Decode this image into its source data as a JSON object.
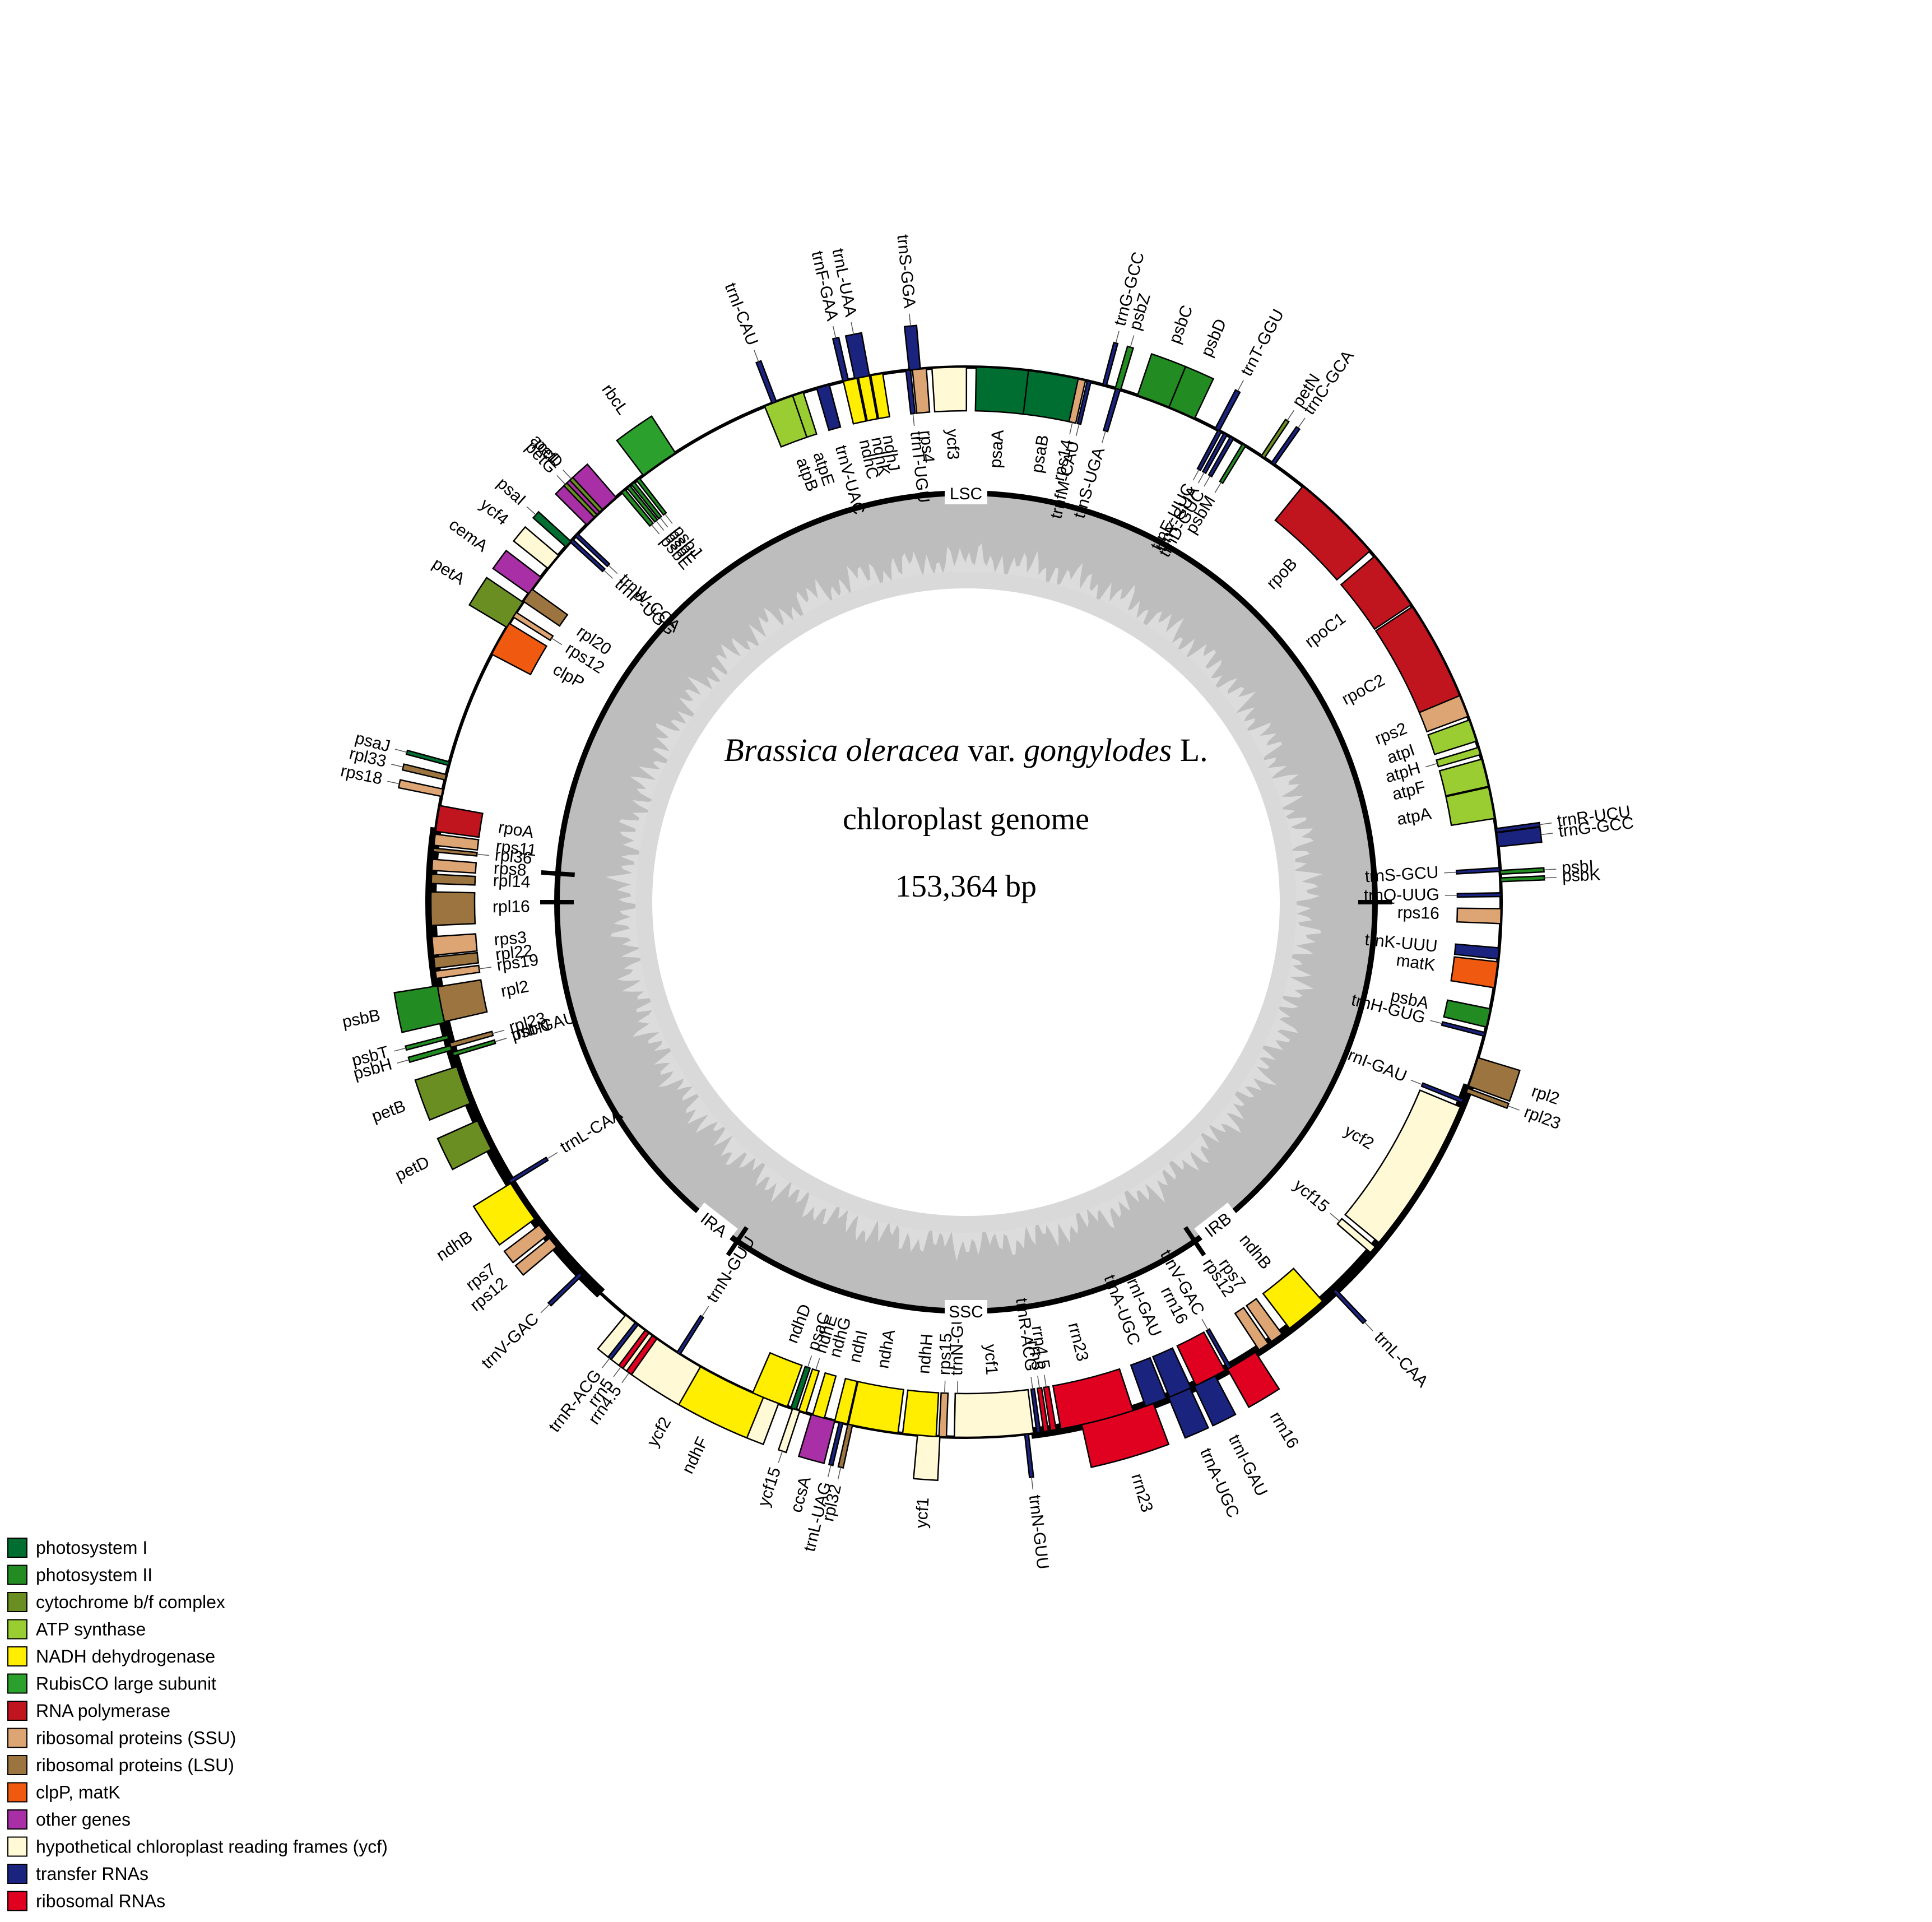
{
  "title": {
    "species_italic_1": "Brassica oleracea",
    "species_plain_1": " var. ",
    "species_italic_2": "gongylodes",
    "species_plain_2": " L.",
    "subtitle": "chloroplast genome",
    "length": "153,364 bp"
  },
  "regions": [
    "LSC",
    "IRA",
    "SSC",
    "IRB"
  ],
  "categories": {
    "PSI": {
      "label": "photosystem I",
      "color": "#006e30"
    },
    "PSII": {
      "label": "photosystem II",
      "color": "#228b22"
    },
    "CYT": {
      "label": "cytochrome b/f complex",
      "color": "#6b8e23"
    },
    "ATP": {
      "label": "ATP synthase",
      "color": "#9acd32"
    },
    "NDH": {
      "label": "NADH dehydrogenase",
      "color": "#ffee00"
    },
    "RBC": {
      "label": "RubisCO large subunit",
      "color": "#2ca02c"
    },
    "RPO": {
      "label": "RNA polymerase",
      "color": "#c0141e"
    },
    "SSU": {
      "label": "ribosomal proteins (SSU)",
      "color": "#dda574"
    },
    "LSU": {
      "label": "ribosomal proteins (LSU)",
      "color": "#9c7440"
    },
    "CLP": {
      "label": "clpP, matK",
      "color": "#ef5a10"
    },
    "OTH": {
      "label": "other genes",
      "color": "#a82fa6"
    },
    "YCF": {
      "label": "hypothetical chloroplast reading frames (ycf)",
      "color": "#fff9d6"
    },
    "TRN": {
      "label": "transfer RNAs",
      "color": "#1a237e"
    },
    "RRN": {
      "label": "ribosomal RNAs",
      "color": "#e00020"
    }
  },
  "legend_order": [
    "PSI",
    "PSII",
    "CYT",
    "ATP",
    "NDH",
    "RBC",
    "RPO",
    "SSU",
    "LSU",
    "CLP",
    "OTH",
    "YCF",
    "TRN",
    "RRN"
  ],
  "genes": [
    {
      "n": "trnS-GGA",
      "c": "TRN",
      "a": -5.5,
      "d": 1.2,
      "o": 1,
      "lr": 90,
      "lead": true
    },
    {
      "n": "trnL-UAA",
      "c": "TRN",
      "a": -11.2,
      "d": 1.6,
      "o": 1,
      "lr": 90,
      "lead": true
    },
    {
      "n": "trnF-GAA",
      "c": "TRN",
      "a": -13,
      "d": 0.6,
      "o": 1,
      "lr": 90,
      "lead": true
    },
    {
      "n": "trnI-CAU",
      "c": "TRN",
      "a": -21,
      "d": 0.5,
      "o": 1,
      "lr": 90,
      "lead": true
    },
    {
      "n": "rbcL",
      "c": "RBC",
      "a": -35,
      "d": 4.2,
      "o": 1,
      "lr": 90
    },
    {
      "n": "accD",
      "c": "OTH",
      "a": -43,
      "d": 4.3,
      "o": 1,
      "lr": 90
    },
    {
      "n": "psaI",
      "c": "PSI",
      "a": -48,
      "d": 0.8,
      "o": 1,
      "lr": 90,
      "lead": true
    },
    {
      "n": "ycf4",
      "c": "YCF",
      "a": -50.5,
      "d": 1.8,
      "o": 1,
      "lr": 90
    },
    {
      "n": "cemA",
      "c": "OTH",
      "a": -53.7,
      "d": 2.2,
      "o": 1,
      "lr": 90
    },
    {
      "n": "petA",
      "c": "CYT",
      "a": -57.5,
      "d": 3.2,
      "o": 1,
      "lr": 90
    },
    {
      "n": "psaJ",
      "c": "PSI",
      "a": -75,
      "d": 0.4,
      "o": 1,
      "lr": 90,
      "lead": true
    },
    {
      "n": "rpl33",
      "c": "LSU",
      "a": -76.5,
      "d": 0.6,
      "o": 1,
      "lr": 90,
      "lead": true
    },
    {
      "n": "rps18",
      "c": "SSU",
      "a": -78.2,
      "d": 0.8,
      "o": 1,
      "lr": 90,
      "lead": true
    },
    {
      "n": "psbB",
      "c": "PSII",
      "a": -101,
      "d": 4,
      "o": 1,
      "lr": 90
    },
    {
      "n": "psbT",
      "c": "PSII",
      "a": -104.6,
      "d": 0.4,
      "o": 1,
      "lr": 90,
      "lead": true
    },
    {
      "n": "psbH",
      "c": "PSII",
      "a": -105.8,
      "d": 0.5,
      "o": 1,
      "lr": 90,
      "lead": true
    },
    {
      "n": "petB",
      "c": "CYT",
      "a": -110,
      "d": 4.2,
      "o": 1,
      "lr": 90
    },
    {
      "n": "petD",
      "c": "CYT",
      "a": -115.8,
      "d": 3.4,
      "o": 1,
      "lr": 90
    },
    {
      "n": "ycf2",
      "c": "YCF",
      "a": -150,
      "d": 19,
      "o": 1,
      "lr": 90
    },
    {
      "n": "ycf15",
      "c": "YCF",
      "a": -161.5,
      "d": 0.8,
      "o": 1,
      "lr": 90,
      "lead": true
    },
    {
      "n": "rrn16",
      "c": "RRN",
      "a": -211,
      "d": 3.5,
      "o": 1,
      "lr": 90
    },
    {
      "n": "trnI-GAU",
      "c": "TRN",
      "a": -206.5,
      "d": 2.5,
      "o": 1,
      "lr": 90
    },
    {
      "n": "trnA-UGC",
      "c": "TRN",
      "a": -203.5,
      "d": 2.5,
      "o": 1,
      "lr": 90
    },
    {
      "n": "rrn23",
      "c": "RRN",
      "a": -196.5,
      "d": 8,
      "o": 1,
      "lr": 90
    },
    {
      "n": "ycf1",
      "c": "YCF",
      "a": -176,
      "d": 2.4,
      "o": 1,
      "lr": 90
    },
    {
      "n": "rpl32",
      "c": "LSU",
      "a": -167.5,
      "d": 0.5,
      "o": 1,
      "lr": 90,
      "lead": true
    },
    {
      "n": "ccsA",
      "c": "OTH",
      "a": -164.5,
      "d": 2.6,
      "o": 1,
      "lr": 90
    },
    {
      "n": "trnN-GUU",
      "c": "TRN",
      "a": -179,
      "d": 0.5,
      "o": 0,
      "lr": 270,
      "lead": true
    },
    {
      "n": "trnV-UAC",
      "c": "TRN",
      "a": -15.5,
      "d": 1.4,
      "o": 0,
      "lr": 90
    },
    {
      "n": "atpE",
      "c": "ATP",
      "a": -18.3,
      "d": 1.2,
      "o": 0,
      "lr": 90
    },
    {
      "n": "atpB",
      "c": "ATP",
      "a": -20.5,
      "d": 3.2,
      "o": 0,
      "lr": 90
    },
    {
      "n": "ndhC",
      "c": "NDH",
      "a": -12.5,
      "d": 1.5,
      "o": 0,
      "lr": 90
    },
    {
      "n": "ndhK",
      "c": "NDH",
      "a": -11,
      "d": 1.2,
      "o": 0,
      "lr": 90
    },
    {
      "n": "ndhJ",
      "c": "NDH",
      "a": -9.6,
      "d": 1.3,
      "o": 0,
      "lr": 90
    },
    {
      "n": "trnT-UGU",
      "c": "TRN",
      "a": -6.2,
      "d": 0.5,
      "o": 0,
      "lr": 90
    },
    {
      "n": "rps4",
      "c": "SSU",
      "a": -5,
      "d": 1.5,
      "o": 0,
      "lr": 90
    },
    {
      "n": "ycf3",
      "c": "YCF",
      "a": -1.8,
      "d": 3.7,
      "o": 0,
      "lr": 90
    },
    {
      "n": "psaA",
      "c": "PSI",
      "a": 4,
      "d": 5.8,
      "o": 0,
      "lr": 90
    },
    {
      "n": "psaB",
      "c": "PSI",
      "a": 9.5,
      "d": 5.6,
      "o": 0,
      "lr": 90
    },
    {
      "n": "rps14",
      "c": "SSU",
      "a": 12.5,
      "d": 0.8,
      "o": 0,
      "lr": 90
    },
    {
      "n": "trnfM-CAU",
      "c": "TRN",
      "a": 13.3,
      "d": 0.4,
      "o": 0,
      "lr": 90
    },
    {
      "n": "trnG-GCC",
      "c": "TRN",
      "a": 15,
      "d": 0.4,
      "o": 1,
      "lr": 90,
      "lead": true
    },
    {
      "n": "psbZ",
      "c": "PSII",
      "a": 16.5,
      "d": 0.6,
      "o": 1,
      "lr": 90,
      "lead": true
    },
    {
      "n": "psbC",
      "c": "PSII",
      "a": 20.5,
      "d": 3.6,
      "o": 1,
      "lr": 90
    },
    {
      "n": "psbD",
      "c": "PSII",
      "a": 23.8,
      "d": 3,
      "o": 1,
      "lr": 90
    },
    {
      "n": "trnT-GGU",
      "c": "TRN",
      "a": 28,
      "d": 0.5,
      "o": 1,
      "lr": 90,
      "lead": true
    },
    {
      "n": "trnS-UGA",
      "c": "TRN",
      "a": 16.5,
      "d": 0.5,
      "o": 0,
      "lr": 90
    },
    {
      "n": "trnE-UUC",
      "c": "TRN",
      "a": 28.3,
      "d": 0.4,
      "o": 0,
      "lr": 90
    },
    {
      "n": "trnY-GUA",
      "c": "TRN",
      "a": 29,
      "d": 0.4,
      "o": 0,
      "lr": 90
    },
    {
      "n": "trnD-GUC",
      "c": "TRN",
      "a": 29.8,
      "d": 0.4,
      "o": 0,
      "lr": 90
    },
    {
      "n": "psbM",
      "c": "PSII",
      "a": 31.3,
      "d": 0.4,
      "o": 0,
      "lr": 90
    },
    {
      "n": "petN",
      "c": "CYT",
      "a": 33.7,
      "d": 0.4,
      "o": 1,
      "lr": 90,
      "lead": true
    },
    {
      "n": "trnC-GCA",
      "c": "TRN",
      "a": 35,
      "d": 0.4,
      "o": 1,
      "lr": 90,
      "lead": true
    },
    {
      "n": "rpoB",
      "c": "RPO",
      "a": 44,
      "d": 10,
      "o": 0,
      "lr": 90
    },
    {
      "n": "rpoC1",
      "c": "RPO",
      "a": 53,
      "d": 6.5,
      "o": 0,
      "lr": 90
    },
    {
      "n": "rpoC2",
      "c": "RPO",
      "a": 62,
      "d": 11,
      "o": 0,
      "lr": 90
    },
    {
      "n": "rps2",
      "c": "SSU",
      "a": 68.5,
      "d": 2.4,
      "o": 0,
      "lr": 90
    },
    {
      "n": "atpI",
      "c": "ATP",
      "a": 71.3,
      "d": 2.4,
      "o": 0,
      "lr": 90
    },
    {
      "n": "atpH",
      "c": "ATP",
      "a": 73.6,
      "d": 0.8,
      "o": 0,
      "lr": 90
    },
    {
      "n": "atpF",
      "c": "ATP",
      "a": 76,
      "d": 3,
      "o": 0,
      "lr": 90
    },
    {
      "n": "atpA",
      "c": "ATP",
      "a": 79.3,
      "d": 3.4,
      "o": 0,
      "lr": 90
    },
    {
      "n": "trnR-UCU",
      "c": "TRN",
      "a": 82.3,
      "d": 0.4,
      "o": 1,
      "lr": 90,
      "lead": true
    },
    {
      "n": "trnG-GCC",
      "c": "TRN",
      "a": 83.3,
      "d": 1.5,
      "o": 1,
      "lr": 90,
      "lead": true
    },
    {
      "n": "trnS-GCU",
      "c": "TRN",
      "a": 86.5,
      "d": 0.4,
      "o": 0,
      "lr": 90
    },
    {
      "n": "psbI",
      "c": "PSII",
      "a": 86.8,
      "d": 0.4,
      "o": 1,
      "lr": 90,
      "lead": true
    },
    {
      "n": "psbK",
      "c": "PSII",
      "a": 87.6,
      "d": 0.4,
      "o": 1,
      "lr": 90,
      "lead": true
    },
    {
      "n": "trnQ-UUG",
      "c": "TRN",
      "a": 89.2,
      "d": 0.4,
      "o": 0,
      "lr": 90
    },
    {
      "n": "rps16",
      "c": "SSU",
      "a": 91.5,
      "d": 1.6,
      "o": 0,
      "lr": 90
    },
    {
      "n": "trnK-UUU",
      "c": "TRN",
      "a": 95.5,
      "d": 1.2,
      "o": 0,
      "lr": 90
    },
    {
      "n": "matK",
      "c": "CLP",
      "a": 97.8,
      "d": 2.8,
      "o": 0,
      "lr": 90
    },
    {
      "n": "psbA",
      "c": "PSII",
      "a": 102.5,
      "d": 2,
      "o": 0,
      "lr": 90
    },
    {
      "n": "trnH-GUG",
      "c": "TRN",
      "a": 104.3,
      "d": 0.4,
      "o": 0,
      "lr": 90
    },
    {
      "n": "rpl2",
      "c": "LSU",
      "a": 108.5,
      "d": 3.2,
      "o": 1,
      "lr": 90
    },
    {
      "n": "rpl23",
      "c": "LSU",
      "a": 110.6,
      "d": 0.5,
      "o": 1,
      "lr": 90,
      "lead": true
    },
    {
      "n": "trnI-GAU",
      "c": "TRN",
      "a": 111.8,
      "d": 0.4,
      "o": 0,
      "lr": 90
    },
    {
      "n": "ycf2",
      "c": "YCF",
      "a": 121,
      "d": 17,
      "o": 0,
      "lr": 90
    },
    {
      "n": "ycf15",
      "c": "YCF",
      "a": 130.5,
      "d": 0.8,
      "o": 0,
      "lr": 90
    },
    {
      "n": "trnL-CAA",
      "c": "TRN",
      "a": 136.5,
      "d": 0.4,
      "o": 1,
      "lr": 90,
      "lead": true
    },
    {
      "n": "ndhB",
      "c": "NDH",
      "a": 140.5,
      "d": 4.6,
      "o": 0,
      "lr": 90
    },
    {
      "n": "rps7",
      "c": "SSU",
      "a": 144.5,
      "d": 1.4,
      "o": 0,
      "lr": 90
    },
    {
      "n": "rps12",
      "c": "SSU",
      "a": 146.2,
      "d": 1.2,
      "o": 0,
      "lr": 90
    },
    {
      "n": "trnV-GAC",
      "c": "TRN",
      "a": 150.5,
      "d": 0.4,
      "o": 0,
      "lr": 90
    },
    {
      "n": "rrn16",
      "c": "RRN",
      "a": 152.8,
      "d": 3.5,
      "o": 0,
      "lr": 90
    },
    {
      "n": "trnI-GAU",
      "c": "TRN",
      "a": 156.4,
      "d": 2.5,
      "o": 0,
      "lr": 90
    },
    {
      "n": "trnA-UGC",
      "c": "TRN",
      "a": 159.2,
      "d": 2.4,
      "o": 0,
      "lr": 90
    },
    {
      "n": "rrn23",
      "c": "RRN",
      "a": 165.8,
      "d": 8,
      "o": 0,
      "lr": 90
    },
    {
      "n": "rrn4.5",
      "c": "RRN",
      "a": 170.6,
      "d": 0.6,
      "o": 0,
      "lr": 90
    },
    {
      "n": "rrn5",
      "c": "RRN",
      "a": 171.4,
      "d": 0.5,
      "o": 0,
      "lr": 90
    },
    {
      "n": "trnR-ACG",
      "c": "TRN",
      "a": 172.2,
      "d": 0.4,
      "o": 0,
      "lr": 90
    },
    {
      "n": "trnN-GUU",
      "c": "TRN",
      "a": 173.5,
      "d": 0.4,
      "o": 1,
      "lr": 90,
      "lead": true
    },
    {
      "n": "ycf1",
      "c": "YCF",
      "a": 177,
      "d": 8.5,
      "o": 0,
      "lr": 90
    },
    {
      "n": "rps15",
      "c": "SSU",
      "a": 182.5,
      "d": 0.8,
      "o": 0,
      "lr": 90
    },
    {
      "n": "ndhH",
      "c": "NDH",
      "a": 185,
      "d": 3.6,
      "o": 0,
      "lr": 90
    },
    {
      "n": "ndhA",
      "c": "NDH",
      "a": 190,
      "d": 5.4,
      "o": 0,
      "lr": 90
    },
    {
      "n": "ndhI",
      "c": "NDH",
      "a": 193.5,
      "d": 1.4,
      "o": 0,
      "lr": 90
    },
    {
      "n": "ndhG",
      "c": "NDH",
      "a": 196,
      "d": 1.3,
      "o": 0,
      "lr": 90
    },
    {
      "n": "ndhE",
      "c": "NDH",
      "a": 197.8,
      "d": 0.8,
      "o": 0,
      "lr": 90
    },
    {
      "n": "psaC",
      "c": "PSI",
      "a": 198.8,
      "d": 0.6,
      "o": 0,
      "lr": 90
    },
    {
      "n": "ndhD",
      "c": "NDH",
      "a": 201.5,
      "d": 4,
      "o": 0,
      "lr": 90
    },
    {
      "n": "trnL-UAG",
      "c": "TRN",
      "a": 193.5,
      "d": 0.4,
      "o": 1,
      "lr": 90
    },
    {
      "n": "ndhF",
      "c": "NDH",
      "a": 206,
      "d": 7.5,
      "o": 1,
      "lr": 90
    },
    {
      "n": "trnN-GUU",
      "c": "TRN",
      "a": 212.5,
      "d": 0.4,
      "o": 0,
      "lr": 90
    },
    {
      "n": "rrn4.5",
      "c": "RRN",
      "a": 215.6,
      "d": 0.6,
      "o": 1,
      "lr": 90
    },
    {
      "n": "rrn5",
      "c": "RRN",
      "a": 216.6,
      "d": 0.5,
      "o": 1,
      "lr": 90
    },
    {
      "n": "trnR-ACG",
      "c": "TRN",
      "a": 218,
      "d": 0.4,
      "o": 1,
      "lr": 90
    },
    {
      "n": "trnV-GAC",
      "c": "TRN",
      "a": 226,
      "d": 0.4,
      "o": 1,
      "lr": 90
    },
    {
      "n": "trnL-CAA",
      "c": "TRN",
      "a": 238.5,
      "d": 0.4,
      "o": 0,
      "lr": 90
    },
    {
      "n": "ndhB",
      "c": "NDH",
      "a": 236,
      "d": 4.6,
      "o": 1,
      "lr": 90
    },
    {
      "n": "rps7",
      "c": "SSU",
      "a": 232.2,
      "d": 1.4,
      "o": 1,
      "lr": 90
    },
    {
      "n": "rps12",
      "c": "SSU",
      "a": 230.5,
      "d": 1.2,
      "o": 1,
      "lr": 90
    },
    {
      "n": "rpl23",
      "c": "LSU",
      "a": 254.5,
      "d": 0.5,
      "o": 0,
      "lr": 90
    },
    {
      "n": "trnI-GAU",
      "c": "TRN",
      "a": 253.5,
      "d": 0.4,
      "o": 0,
      "lr": 90
    },
    {
      "n": "rpl2",
      "c": "LSU",
      "a": 259,
      "d": 3.8,
      "o": 0,
      "lr": 90
    },
    {
      "n": "rps19",
      "c": "SSU",
      "a": 262.2,
      "d": 0.8,
      "o": 0,
      "lr": 90
    },
    {
      "n": "rpl22",
      "c": "LSU",
      "a": 263.5,
      "d": 1.2,
      "o": 0,
      "lr": 90
    },
    {
      "n": "rps3",
      "c": "SSU",
      "a": 265.3,
      "d": 2,
      "o": 0,
      "lr": 90
    },
    {
      "n": "rpl16",
      "c": "LSU",
      "a": 269.3,
      "d": 3.6,
      "o": 0,
      "lr": 90
    },
    {
      "n": "rpl14",
      "c": "LSU",
      "a": 272.5,
      "d": 1,
      "o": 0,
      "lr": 90
    },
    {
      "n": "rps8",
      "c": "SSU",
      "a": 274,
      "d": 1.2,
      "o": 0,
      "lr": 90
    },
    {
      "n": "rpl36",
      "c": "LSU",
      "a": 275.6,
      "d": 0.4,
      "o": 0,
      "lr": 90
    },
    {
      "n": "rps11",
      "c": "SSU",
      "a": 276.7,
      "d": 1.2,
      "o": 0,
      "lr": 90
    },
    {
      "n": "rpoA",
      "c": "RPO",
      "a": 279,
      "d": 2.8,
      "o": 0,
      "lr": 90
    },
    {
      "n": "psbN",
      "c": "PSII",
      "a": 253.5,
      "d": 0.4,
      "o": 0,
      "lr": 90
    },
    {
      "n": "clpP",
      "c": "CLP",
      "a": 299.5,
      "d": 3.8,
      "o": 0,
      "lr": 90
    },
    {
      "n": "rps12",
      "c": "SSU",
      "a": 302.5,
      "d": 0.6,
      "o": 0,
      "lr": 90
    },
    {
      "n": "rpl20",
      "c": "LSU",
      "a": 305,
      "d": 1.6,
      "o": 0,
      "lr": 90
    },
    {
      "n": "trnP-UGG",
      "c": "TRN",
      "a": 312.5,
      "d": 0.4,
      "o": 0,
      "lr": 90
    },
    {
      "n": "trnW-CCA",
      "c": "TRN",
      "a": 313.3,
      "d": 0.4,
      "o": 0,
      "lr": 90
    },
    {
      "n": "petG",
      "c": "CYT",
      "a": 316.2,
      "d": 0.4,
      "o": 1,
      "lr": 90
    },
    {
      "n": "petL",
      "c": "CYT",
      "a": 317,
      "d": 0.4,
      "o": 1,
      "lr": 90
    },
    {
      "n": "psbE",
      "c": "PSII",
      "a": 320.2,
      "d": 0.5,
      "o": 0,
      "lr": 90
    },
    {
      "n": "psbF",
      "c": "PSII",
      "a": 320.9,
      "d": 0.4,
      "o": 0,
      "lr": 90
    },
    {
      "n": "psbL",
      "c": "PSII",
      "a": 321.5,
      "d": 0.4,
      "o": 0,
      "lr": 90
    },
    {
      "n": "psbJ",
      "c": "PSII",
      "a": 322.2,
      "d": 0.4,
      "o": 0,
      "lr": 90
    }
  ]
}
